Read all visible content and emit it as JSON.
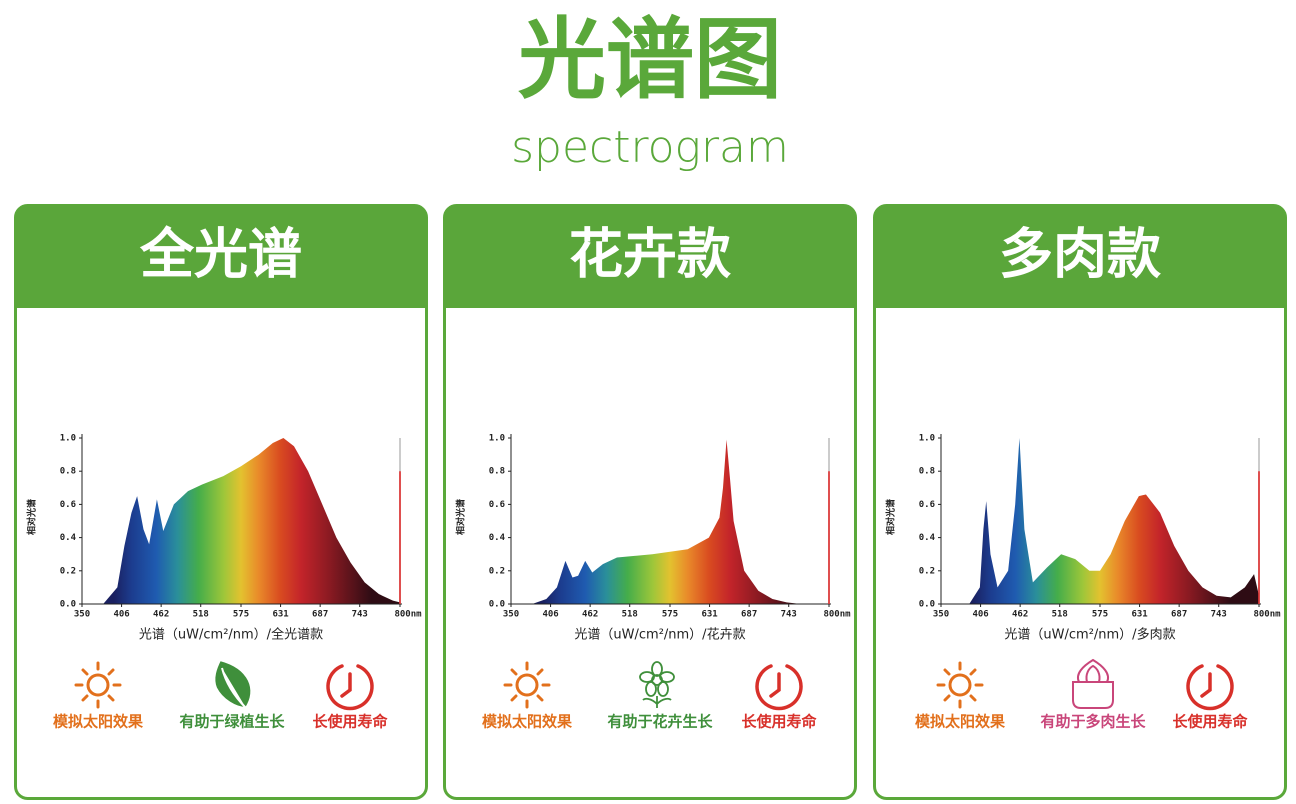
{
  "header": {
    "title": "光谱图",
    "subtitle": "spectrogram"
  },
  "panels": [
    {
      "title": "全光谱",
      "features": [
        "模拟太阳效果",
        "有助于绿植生长",
        "长使用寿命"
      ]
    },
    {
      "title": "花卉款",
      "features": [
        "模拟太阳效果",
        "有助于花卉生长",
        "长使用寿命"
      ]
    },
    {
      "title": "多肉款",
      "features": [
        "模拟太阳效果",
        "有助于多肉生长",
        "长使用寿命"
      ]
    }
  ],
  "chart_data": [
    {
      "type": "area",
      "ylabel": "相对光谱",
      "xlabel": "光谱（uW/cm²/nm）/全光谱款",
      "x": [
        380,
        400,
        410,
        420,
        428,
        437,
        445,
        456,
        465,
        480,
        500,
        520,
        550,
        575,
        600,
        620,
        635,
        650,
        670,
        690,
        710,
        730,
        750,
        770,
        790,
        800
      ],
      "values": [
        0,
        0.1,
        0.35,
        0.55,
        0.65,
        0.45,
        0.36,
        0.63,
        0.44,
        0.6,
        0.68,
        0.72,
        0.77,
        0.83,
        0.9,
        0.97,
        1.0,
        0.95,
        0.8,
        0.6,
        0.4,
        0.25,
        0.13,
        0.06,
        0.02,
        0.01
      ],
      "xlim": [
        350,
        800
      ],
      "ylim": [
        0,
        1
      ],
      "xticks": [
        350,
        406,
        462,
        518,
        575,
        631,
        687,
        743,
        {
          "value": 800,
          "label": "800nm"
        }
      ],
      "yticks": [
        {
          "value": 0,
          "label": "0.0"
        },
        {
          "value": 0.2,
          "label": "0.2"
        },
        {
          "value": 0.4,
          "label": "0.4"
        },
        {
          "value": 0.6,
          "label": "0.6"
        },
        {
          "value": 0.8,
          "label": "0.8"
        },
        {
          "value": 1,
          "label": "1.0"
        }
      ]
    },
    {
      "type": "area",
      "ylabel": "相对光谱",
      "xlabel": "光谱（uW/cm²/nm）/花卉款",
      "x": [
        380,
        400,
        415,
        427,
        437,
        445,
        455,
        465,
        480,
        500,
        550,
        600,
        630,
        645,
        650,
        655,
        660,
        665,
        680,
        700,
        720,
        740,
        760
      ],
      "values": [
        0,
        0.03,
        0.1,
        0.26,
        0.16,
        0.17,
        0.26,
        0.19,
        0.24,
        0.28,
        0.3,
        0.33,
        0.4,
        0.52,
        0.7,
        0.99,
        0.75,
        0.5,
        0.2,
        0.08,
        0.03,
        0.01,
        0
      ],
      "xlim": [
        350,
        800
      ],
      "ylim": [
        0,
        1
      ],
      "xticks": [
        350,
        406,
        462,
        518,
        575,
        631,
        687,
        743,
        {
          "value": 800,
          "label": "800nm"
        }
      ],
      "yticks": [
        {
          "value": 0,
          "label": "0.0"
        },
        {
          "value": 0.2,
          "label": "0.2"
        },
        {
          "value": 0.4,
          "label": "0.4"
        },
        {
          "value": 0.6,
          "label": "0.6"
        },
        {
          "value": 0.8,
          "label": "0.8"
        },
        {
          "value": 1,
          "label": "1.0"
        }
      ]
    },
    {
      "type": "area",
      "ylabel": "相对光谱",
      "xlabel": "光谱（uW/cm²/nm）/多肉款",
      "x": [
        390,
        405,
        410,
        414,
        420,
        430,
        445,
        455,
        461,
        468,
        480,
        500,
        520,
        540,
        560,
        575,
        590,
        610,
        630,
        640,
        660,
        680,
        700,
        720,
        740,
        760,
        780,
        793,
        800
      ],
      "values": [
        0,
        0.1,
        0.45,
        0.62,
        0.3,
        0.1,
        0.2,
        0.6,
        1.0,
        0.45,
        0.13,
        0.22,
        0.3,
        0.27,
        0.2,
        0.2,
        0.3,
        0.5,
        0.65,
        0.66,
        0.55,
        0.35,
        0.2,
        0.1,
        0.05,
        0.04,
        0.1,
        0.18,
        0.05
      ],
      "xlim": [
        350,
        800
      ],
      "ylim": [
        0,
        1
      ],
      "xticks": [
        350,
        406,
        462,
        518,
        575,
        631,
        687,
        743,
        {
          "value": 800,
          "label": "800nm"
        }
      ],
      "yticks": [
        {
          "value": 0,
          "label": "0.0"
        },
        {
          "value": 0.2,
          "label": "0.2"
        },
        {
          "value": 0.4,
          "label": "0.4"
        },
        {
          "value": 0.6,
          "label": "0.6"
        },
        {
          "value": 0.8,
          "label": "0.8"
        },
        {
          "value": 1,
          "label": "1.0"
        }
      ]
    }
  ]
}
